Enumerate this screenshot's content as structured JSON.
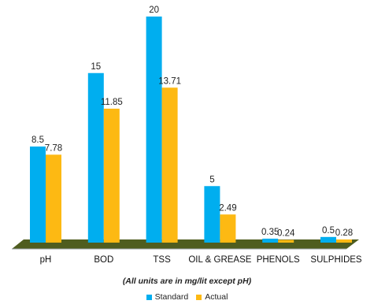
{
  "chart_data": {
    "type": "bar",
    "categories": [
      "pH",
      "BOD",
      "TSS",
      "OIL & GREASE",
      "PHENOLS",
      "SULPHIDES"
    ],
    "series": [
      {
        "name": "Standard",
        "values": [
          8.5,
          15,
          20,
          5,
          0.35,
          0.5
        ],
        "labels": [
          "8.5",
          "15",
          "20",
          "5",
          "0.35",
          "0.5"
        ],
        "color": "#00AEEF"
      },
      {
        "name": "Actual",
        "values": [
          7.78,
          11.85,
          13.71,
          2.49,
          0.24,
          0.28
        ],
        "labels": [
          "7.78",
          "11.85",
          "13.71",
          "2.49",
          "0.24",
          "0.28"
        ],
        "color": "#FDB913"
      }
    ],
    "ylim": [
      0,
      20
    ],
    "floor_color": "#4F5D1F",
    "note": "(All units are in mg/lit except pH)",
    "legend_position": "bottom"
  }
}
